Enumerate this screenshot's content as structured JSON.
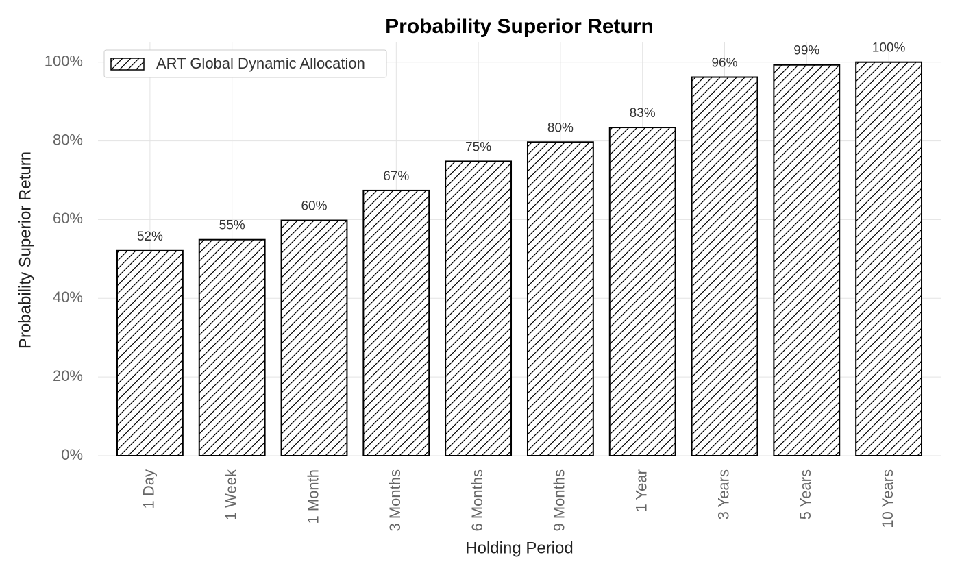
{
  "chart_data": {
    "type": "bar",
    "title": "Probability Superior Return",
    "x_label": "Holding Period",
    "y_label": "Probability Superior Return",
    "categories": [
      "1 Day",
      "1 Week",
      "1 Month",
      "3 Months",
      "6 Months",
      "9 Months",
      "1 Year",
      "3 Years",
      "5 Years",
      "10 Years"
    ],
    "series": [
      {
        "name": "ART Global Dynamic Allocation",
        "color": "#ffffff",
        "values": [
          52.1,
          54.9,
          59.8,
          67.4,
          74.8,
          79.7,
          83.4,
          96.2,
          99.3,
          100
        ],
        "value_labels": [
          "52%",
          "55%",
          "60%",
          "67%",
          "75%",
          "80%",
          "83%",
          "96%",
          "99%",
          "100%"
        ]
      }
    ],
    "ylim": [
      0,
      105
    ],
    "yticks": [
      {
        "value": 0,
        "label": "0%"
      },
      {
        "value": 20,
        "label": "20%"
      },
      {
        "value": 40,
        "label": "40%"
      },
      {
        "value": 60,
        "label": "60%"
      },
      {
        "value": 80,
        "label": "80%"
      },
      {
        "value": 100,
        "label": "100%"
      }
    ],
    "grid": true,
    "legend": "upper left"
  }
}
